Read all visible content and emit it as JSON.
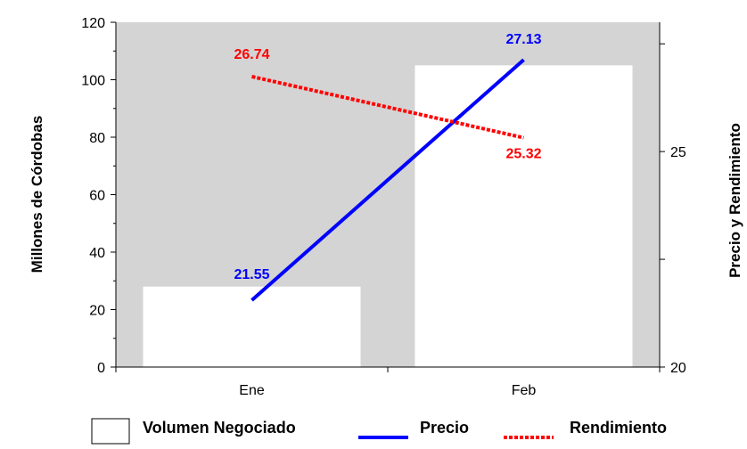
{
  "chart_data": {
    "type": "bar",
    "categories": [
      "Ene",
      "Feb"
    ],
    "series": [
      {
        "name": "Volumen Negociado",
        "type": "bar",
        "axis": "left",
        "values": [
          28,
          105
        ]
      },
      {
        "name": "Precio",
        "type": "line",
        "axis": "right",
        "values": [
          21.55,
          27.13
        ]
      },
      {
        "name": "Rendimiento",
        "type": "line",
        "axis": "right",
        "values": [
          26.74,
          25.32
        ]
      }
    ],
    "data_labels": {
      "precio": [
        "21.55",
        "27.13"
      ],
      "rendimiento": [
        "26.74",
        "25.32"
      ]
    },
    "ylabel": "Millones de Córdobas",
    "y2label": "Precio y Rendimiento",
    "ylim": [
      0,
      120
    ],
    "y2lim": [
      20,
      28
    ],
    "yticks": [
      "0",
      "20",
      "40",
      "60",
      "80",
      "100",
      "120"
    ],
    "y2ticks": [
      "20",
      "25"
    ],
    "legend_position": "bottom",
    "grid": false,
    "colors": {
      "plot_background": "#d4d4d4",
      "bars": "#ffffff",
      "precio": "#0000ff",
      "rendimiento": "#ff0000"
    }
  }
}
